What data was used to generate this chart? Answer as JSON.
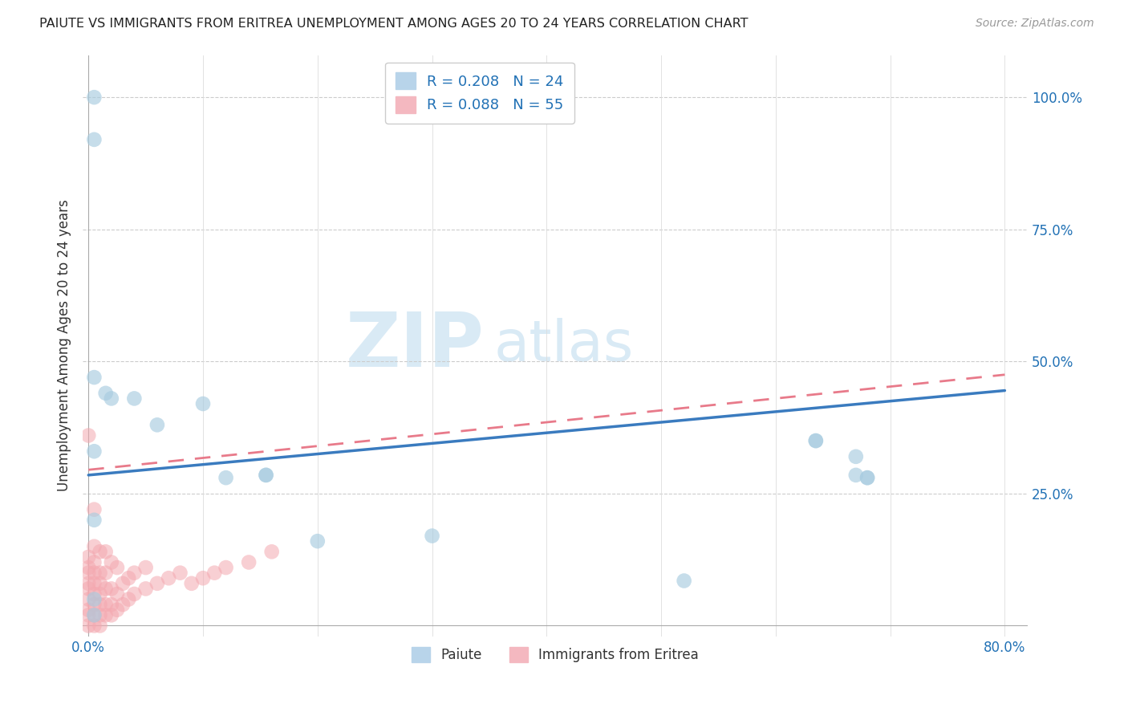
{
  "title": "PAIUTE VS IMMIGRANTS FROM ERITREA UNEMPLOYMENT AMONG AGES 20 TO 24 YEARS CORRELATION CHART",
  "source": "Source: ZipAtlas.com",
  "ylabel_label": "Unemployment Among Ages 20 to 24 years",
  "xlim": [
    -0.005,
    0.82
  ],
  "ylim": [
    -0.02,
    1.08
  ],
  "xtick_positions": [
    0.0,
    0.1,
    0.2,
    0.3,
    0.4,
    0.5,
    0.6,
    0.7,
    0.8
  ],
  "xticklabels": [
    "0.0%",
    "",
    "",
    "",
    "",
    "",
    "",
    "",
    "80.0%"
  ],
  "ytick_positions": [
    0.0,
    0.25,
    0.5,
    0.75,
    1.0
  ],
  "yticklabels": [
    "",
    "25.0%",
    "50.0%",
    "75.0%",
    "100.0%"
  ],
  "paiute_R": 0.208,
  "paiute_N": 24,
  "eritrea_R": 0.088,
  "eritrea_N": 55,
  "paiute_color": "#a8cce0",
  "eritrea_color": "#f4a8b0",
  "paiute_line_color": "#3a7bbf",
  "eritrea_line_color": "#e87a8a",
  "background_color": "#ffffff",
  "paiute_line_x0": 0.0,
  "paiute_line_y0": 0.285,
  "paiute_line_x1": 0.8,
  "paiute_line_y1": 0.445,
  "eritrea_line_x0": 0.0,
  "eritrea_line_y0": 0.295,
  "eritrea_line_x1": 0.8,
  "eritrea_line_y1": 0.475,
  "paiute_x": [
    0.005,
    0.005,
    0.005,
    0.005,
    0.005,
    0.005,
    0.015,
    0.02,
    0.04,
    0.06,
    0.1,
    0.12,
    0.155,
    0.155,
    0.2,
    0.3,
    0.52,
    0.635,
    0.635,
    0.67,
    0.67,
    0.68,
    0.68,
    0.005
  ],
  "paiute_y": [
    1.0,
    0.92,
    0.47,
    0.33,
    0.2,
    0.05,
    0.44,
    0.43,
    0.43,
    0.38,
    0.42,
    0.28,
    0.285,
    0.285,
    0.16,
    0.17,
    0.085,
    0.35,
    0.35,
    0.32,
    0.285,
    0.28,
    0.28,
    0.02
  ],
  "eritrea_x": [
    0.0,
    0.0,
    0.0,
    0.0,
    0.0,
    0.0,
    0.0,
    0.0,
    0.0,
    0.0,
    0.005,
    0.005,
    0.005,
    0.005,
    0.005,
    0.005,
    0.005,
    0.005,
    0.005,
    0.01,
    0.01,
    0.01,
    0.01,
    0.01,
    0.01,
    0.01,
    0.015,
    0.015,
    0.015,
    0.015,
    0.015,
    0.02,
    0.02,
    0.02,
    0.02,
    0.025,
    0.025,
    0.025,
    0.03,
    0.03,
    0.035,
    0.035,
    0.04,
    0.04,
    0.05,
    0.05,
    0.06,
    0.07,
    0.08,
    0.09,
    0.1,
    0.11,
    0.12,
    0.14,
    0.16
  ],
  "eritrea_y": [
    0.0,
    0.02,
    0.03,
    0.05,
    0.07,
    0.08,
    0.1,
    0.11,
    0.13,
    0.36,
    0.0,
    0.02,
    0.04,
    0.06,
    0.08,
    0.1,
    0.12,
    0.15,
    0.22,
    0.0,
    0.02,
    0.04,
    0.06,
    0.08,
    0.1,
    0.14,
    0.02,
    0.04,
    0.07,
    0.1,
    0.14,
    0.02,
    0.04,
    0.07,
    0.12,
    0.03,
    0.06,
    0.11,
    0.04,
    0.08,
    0.05,
    0.09,
    0.06,
    0.1,
    0.07,
    0.11,
    0.08,
    0.09,
    0.1,
    0.08,
    0.09,
    0.1,
    0.11,
    0.12,
    0.14
  ]
}
